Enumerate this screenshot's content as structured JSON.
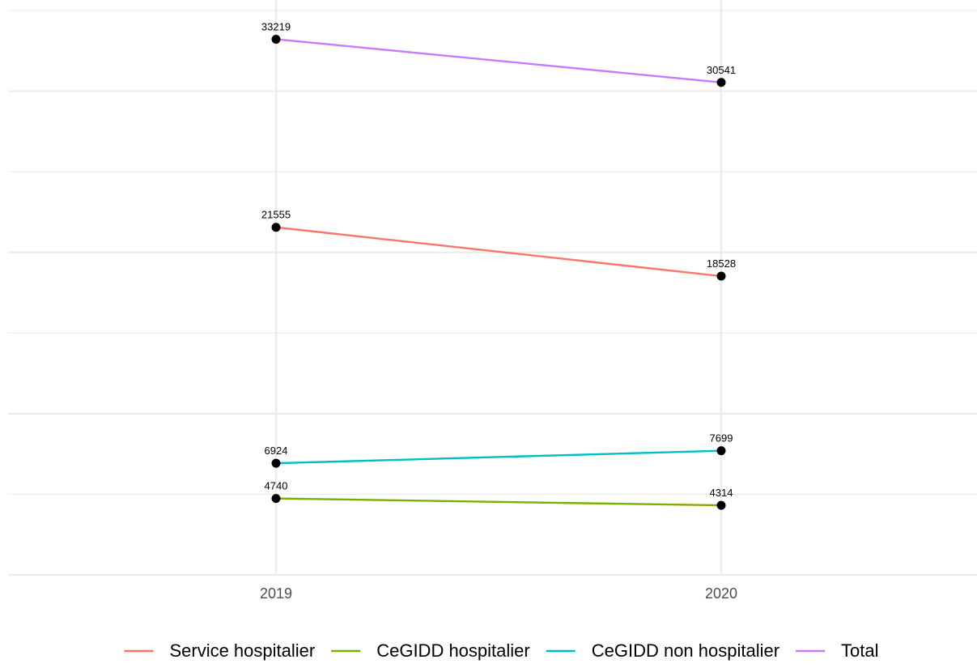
{
  "chart_data": {
    "type": "line",
    "title": "",
    "xlabel": "",
    "ylabel": "",
    "categories": [
      "2019",
      "2020"
    ],
    "ylim": [
      0,
      35000
    ],
    "y_grid_major": [
      0,
      10000,
      20000,
      30000
    ],
    "y_grid_minor": [
      5000,
      15000,
      25000,
      35000
    ],
    "grid": true,
    "y_tick_labels_shown": false,
    "legend_position": "bottom",
    "series": [
      {
        "name": "Service hospitalier",
        "color": "#F8766D",
        "values": [
          21555,
          18528
        ]
      },
      {
        "name": "CeGIDD hospitalier",
        "color": "#7CAE00",
        "values": [
          4740,
          4314
        ]
      },
      {
        "name": "CeGIDD non hospitalier",
        "color": "#00BFC4",
        "values": [
          6924,
          7699
        ]
      },
      {
        "name": "Total",
        "color": "#C77CFF",
        "values": [
          33219,
          30541
        ]
      }
    ],
    "point_color": "#000000",
    "grid_color": "#ebebeb"
  }
}
